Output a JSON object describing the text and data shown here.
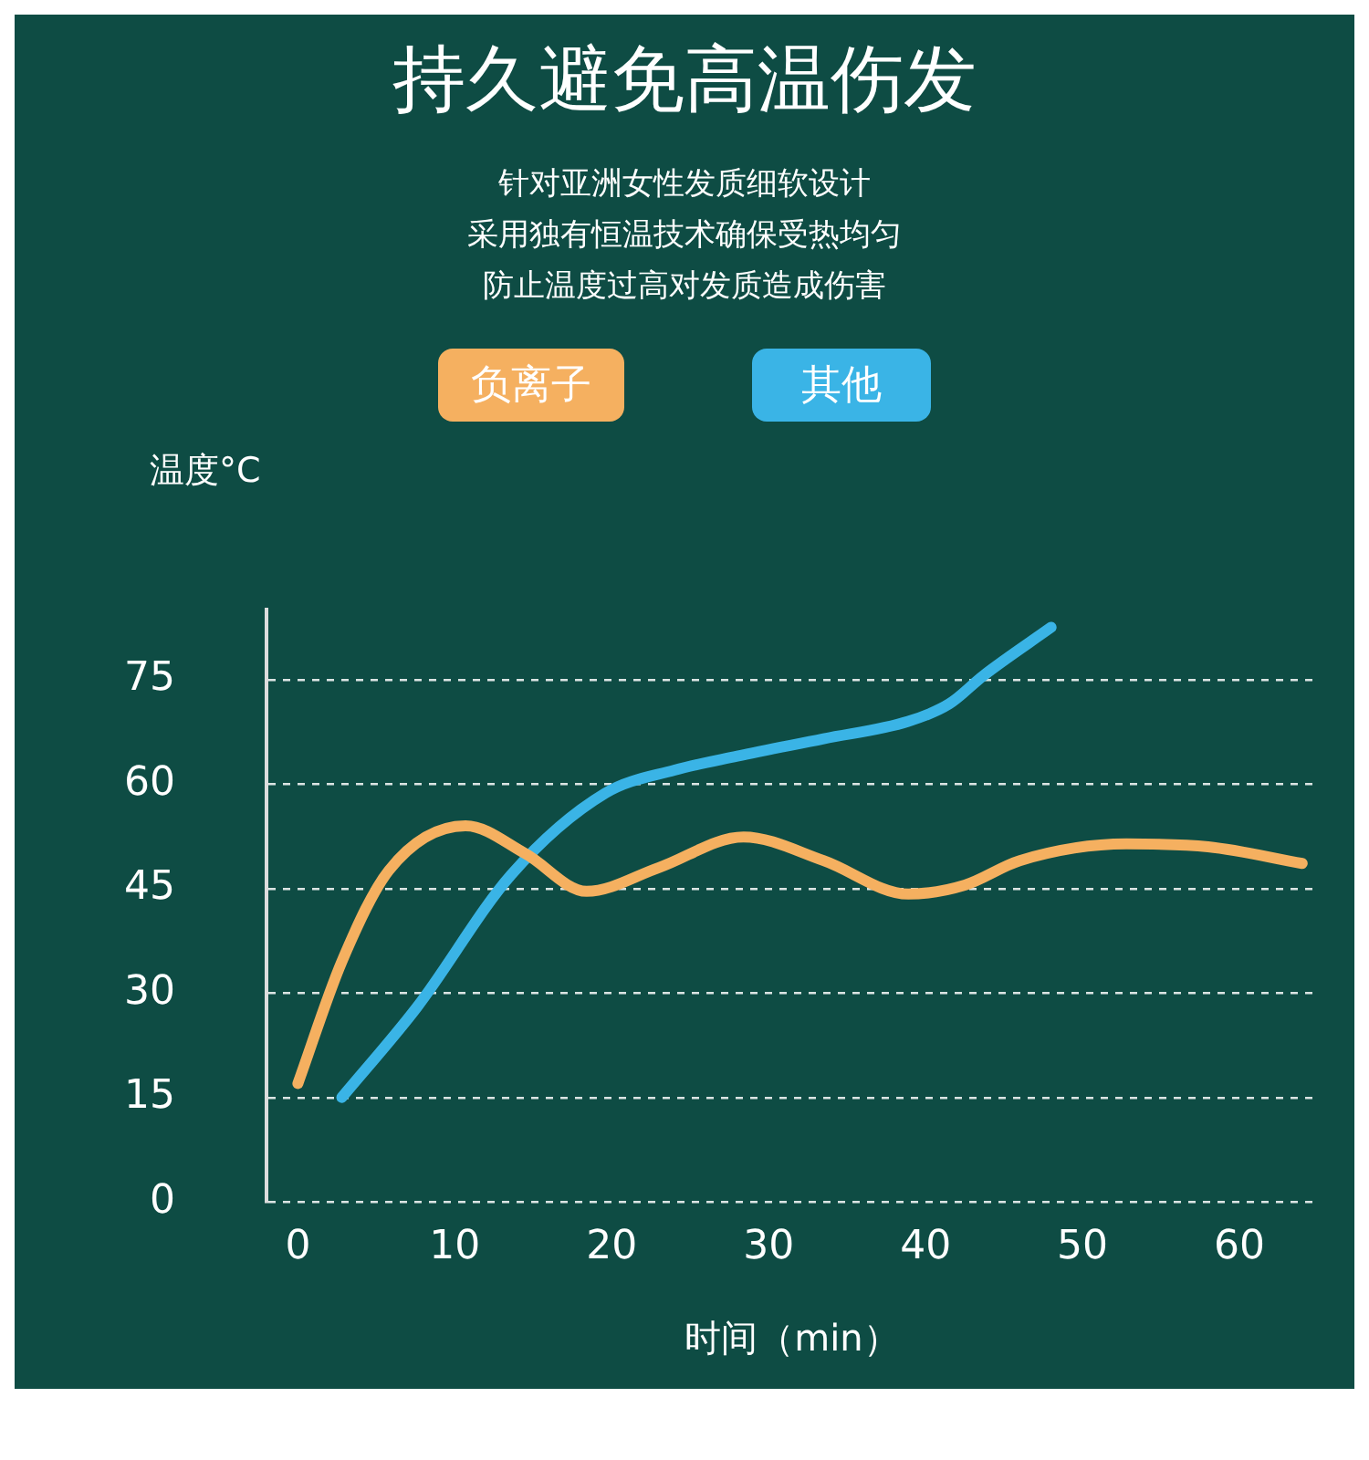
{
  "chart_data": {
    "type": "line",
    "title": "持久避免高温伤发",
    "subtitle": "针对亚洲女性发质细软设计",
    "annotations": [
      "采用独有恒温技术确保受热均匀",
      "防止温度过高对发质造成伤害"
    ],
    "ylabel": "温度°C",
    "xlabel": "时间（min）",
    "series": [
      {
        "name": "负离子",
        "color": "#f5b060",
        "x": [
          0,
          2.8,
          5.8,
          10.7,
          14.5,
          18.4,
          23,
          28.4,
          33.5,
          38.9,
          42.5,
          46,
          52.8,
          58,
          64
        ],
        "values": [
          17,
          34.5,
          47.6,
          54,
          50,
          44.6,
          48,
          52.4,
          49,
          44.2,
          45.5,
          49,
          51.4,
          51,
          48.6
        ]
      },
      {
        "name": "其他",
        "color": "#3ab4e6",
        "x": [
          2.8,
          7.6,
          13.6,
          19.6,
          24,
          28,
          33.5,
          38.9,
          41.5,
          43.7,
          48
        ],
        "values": [
          15,
          28,
          47,
          58.7,
          62,
          64,
          66.5,
          69,
          71.5,
          75.6,
          82.5
        ]
      }
    ],
    "xlim": [
      -2,
      65
    ],
    "xticks": [
      0,
      10,
      20,
      30,
      40,
      50,
      60
    ],
    "ylim": [
      0,
      85
    ],
    "yticks": [
      0,
      15,
      30,
      45,
      60,
      75
    ],
    "grid": "y",
    "legend": "top",
    "marker": "none",
    "line_style": "solid"
  }
}
